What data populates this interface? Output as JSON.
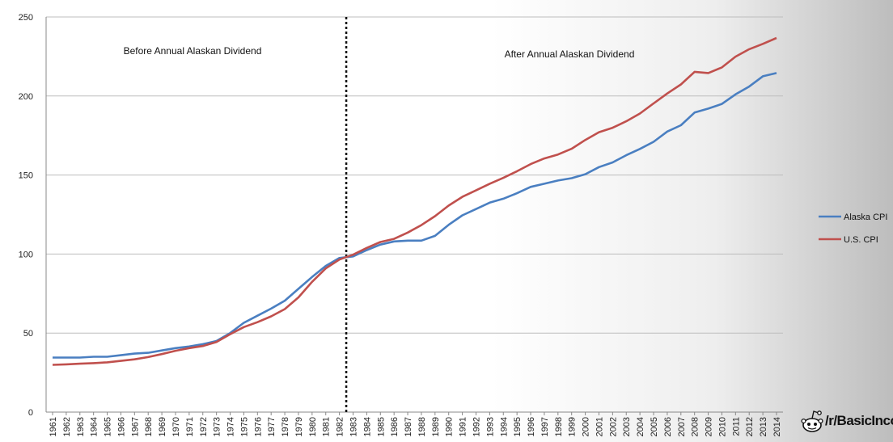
{
  "chart_data": {
    "type": "line",
    "x": [
      1961,
      1962,
      1963,
      1964,
      1965,
      1966,
      1967,
      1968,
      1969,
      1970,
      1971,
      1972,
      1973,
      1974,
      1975,
      1976,
      1977,
      1978,
      1979,
      1980,
      1981,
      1982,
      1983,
      1984,
      1985,
      1986,
      1987,
      1988,
      1989,
      1990,
      1991,
      1992,
      1993,
      1994,
      1995,
      1996,
      1997,
      1998,
      1999,
      2000,
      2001,
      2002,
      2003,
      2004,
      2005,
      2006,
      2007,
      2008,
      2009,
      2010,
      2011,
      2012,
      2013,
      2014
    ],
    "series": [
      {
        "name": "Alaska CPI",
        "color": "#4a7fc1",
        "values": [
          34.5,
          34.5,
          34.5,
          35,
          35,
          36,
          37,
          37.5,
          39,
          40.5,
          41.5,
          43,
          45,
          50,
          56.5,
          61,
          65.5,
          70.5,
          78,
          85.5,
          92.5,
          97.5,
          98.5,
          102.5,
          106,
          108,
          108.5,
          108.5,
          111.5,
          118.5,
          124.5,
          128.5,
          132.5,
          135,
          138.5,
          142.5,
          144.5,
          146.5,
          148,
          150.5,
          155,
          158,
          162.5,
          166.5,
          171,
          177.5,
          181.5,
          189.5,
          192,
          195,
          201,
          206,
          212.5,
          214.5
        ]
      },
      {
        "name": "U.S. CPI",
        "color": "#c0504d",
        "values": [
          29.9,
          30.2,
          30.6,
          31,
          31.5,
          32.4,
          33.4,
          34.8,
          36.7,
          38.8,
          40.5,
          41.8,
          44.4,
          49.3,
          53.8,
          56.9,
          60.6,
          65.2,
          72.6,
          82.4,
          90.9,
          96.5,
          99.6,
          103.9,
          107.6,
          109.6,
          113.6,
          118.3,
          124,
          130.7,
          136.2,
          140.3,
          144.5,
          148.2,
          152.4,
          156.9,
          160.5,
          163,
          166.6,
          172.2,
          177.1,
          179.9,
          184,
          188.9,
          195.3,
          201.6,
          207.3,
          215.3,
          214.5,
          218.1,
          224.9,
          229.6,
          233,
          236.7
        ]
      }
    ],
    "ylim": [
      0,
      250
    ],
    "yticks": [
      0,
      50,
      100,
      150,
      200,
      250
    ],
    "grid": true,
    "divider_year": 1982.5,
    "annotations": {
      "before": "Before Annual Alaskan Dividend",
      "after": "After Annual  Alaskan Dividend"
    },
    "legend": {
      "placement": "right",
      "entries": [
        "Alaska CPI",
        "U.S. CPI"
      ]
    }
  },
  "watermark": {
    "text": "/r/BasicIncome",
    "icon": "reddit-alien-icon"
  }
}
